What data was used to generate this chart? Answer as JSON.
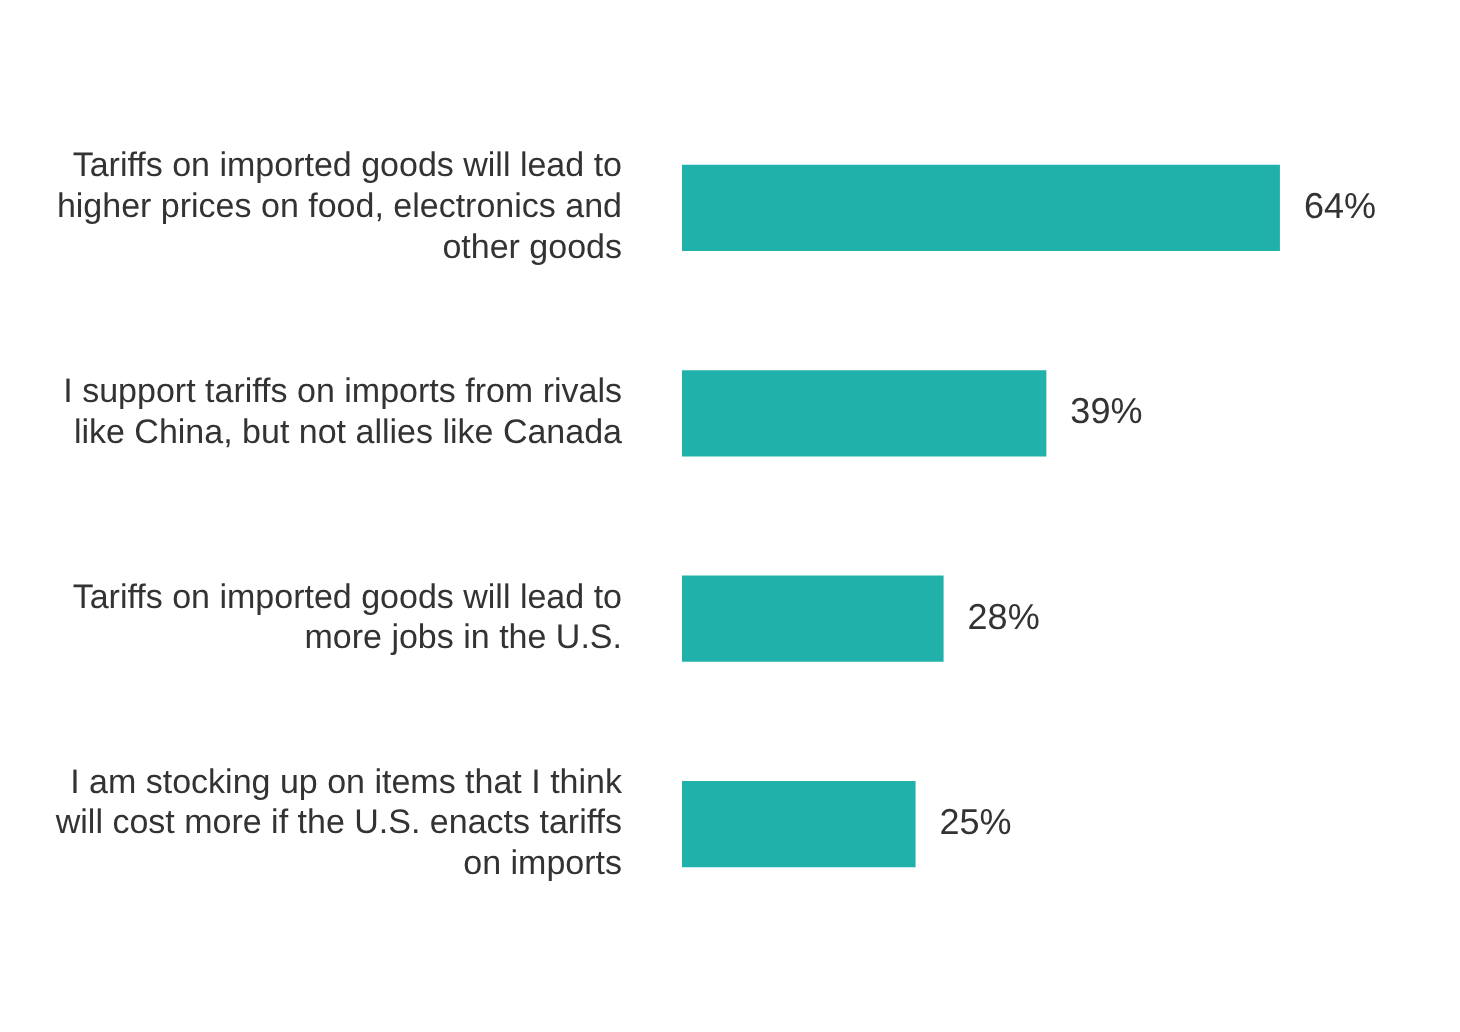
{
  "chart_data": {
    "type": "bar",
    "orientation": "horizontal",
    "categories": [
      "Tariffs on imported goods will lead to higher prices on food, electronics and other goods",
      "I support tariffs on imports from rivals like China, but not allies like Canada",
      "Tariffs on imported goods will lead to more jobs in the U.S.",
      "I am stocking up on items that I think will cost more if the U.S. enacts tariffs on imports"
    ],
    "values": [
      64,
      39,
      28,
      25
    ],
    "value_labels": [
      "64%",
      "39%",
      "28%",
      "25%"
    ],
    "color": "#20b2aa",
    "legend": false,
    "tick_labels": "y"
  }
}
